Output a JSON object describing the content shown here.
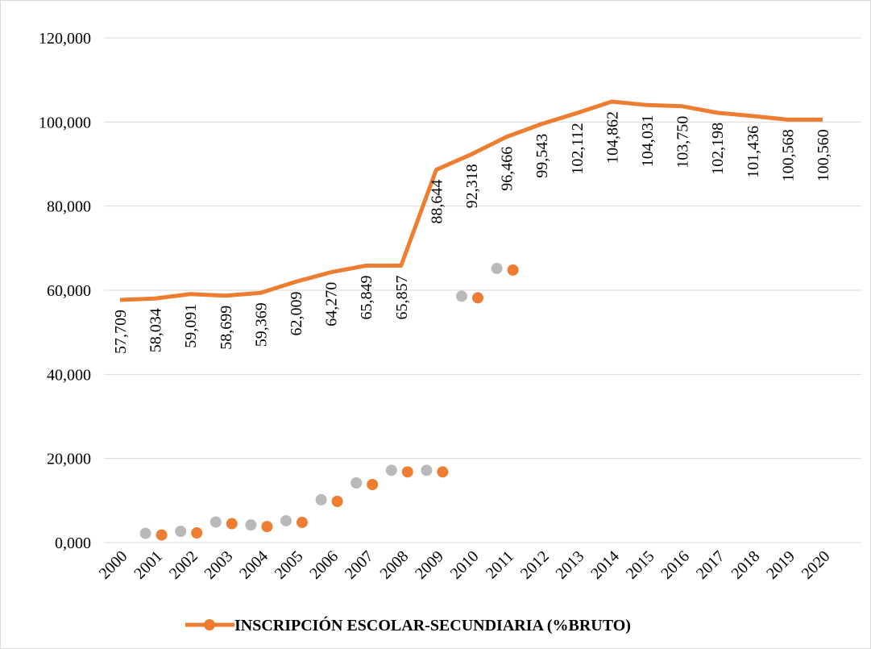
{
  "chart_data": {
    "type": "line",
    "legend": "INSCRIPCIÓN ESCOLAR-SECUNDIARIA (%BRUTO)",
    "legend_position": "bottom",
    "grid": true,
    "ylim": [
      0,
      120000
    ],
    "y_ticks": [
      "0,000",
      "20,000",
      "40,000",
      "60,000",
      "80,000",
      "100,000",
      "120,000"
    ],
    "categories": [
      "2000",
      "2001",
      "2002",
      "2003",
      "2004",
      "2005",
      "2006",
      "2007",
      "2008",
      "2009",
      "2010",
      "2011",
      "2012",
      "2013",
      "2014",
      "2015",
      "2016",
      "2017",
      "2018",
      "2019",
      "2020"
    ],
    "series": [
      {
        "name": "INSCRIPCIÓN ESCOLAR-SECUNDIARIA (%BRUTO)",
        "color": "#ED7D31",
        "values": [
          57709,
          58034,
          59091,
          58699,
          59369,
          62009,
          64270,
          65849,
          65857,
          88644,
          92318,
          96466,
          99543,
          102112,
          104862,
          104031,
          103750,
          102198,
          101436,
          100568,
          100560
        ],
        "labels": [
          "57,709",
          "58,034",
          "59,091",
          "58,699",
          "59,369",
          "62,009",
          "64,270",
          "65,849",
          "65,857",
          "88,644",
          "92,318",
          "96,466",
          "99,543",
          "102,112",
          "104,862",
          "104,031",
          "103,750",
          "102,198",
          "101,436",
          "100,568",
          "100,560"
        ]
      }
    ],
    "scatter_points": [
      {
        "x": 2.5,
        "y": 1800
      },
      {
        "x": 4.5,
        "y": 2300
      },
      {
        "x": 6.5,
        "y": 4500
      },
      {
        "x": 8.5,
        "y": 3800
      },
      {
        "x": 10.5,
        "y": 4800
      },
      {
        "x": 12.5,
        "y": 9800
      },
      {
        "x": 14.5,
        "y": 13800
      },
      {
        "x": 16.5,
        "y": 16800
      },
      {
        "x": 18.5,
        "y": 16800
      },
      {
        "x": 20.5,
        "y": 58200
      },
      {
        "x": 22.5,
        "y": 64800
      }
    ],
    "colors": {
      "series": "#ED7D31",
      "shadow": "#7f7f7f",
      "grid": "#d9d9d9"
    }
  }
}
